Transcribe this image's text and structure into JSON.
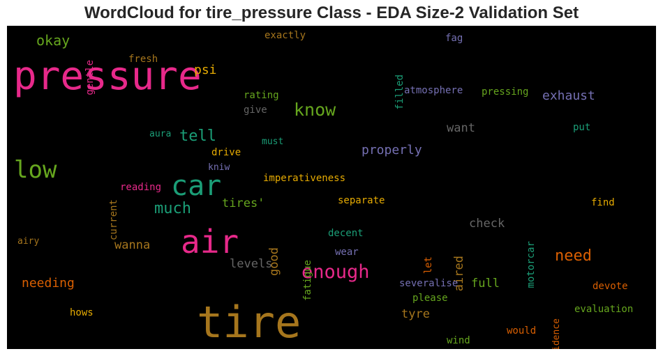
{
  "chart_data": {
    "type": "wordcloud",
    "title": "WordCloud for tire_pressure Class - EDA Size-2 Validation Set",
    "background": "#000000",
    "words": [
      {
        "text": "tire",
        "color": "#a6761d"
      },
      {
        "text": "pressure",
        "color": "#e7298a"
      },
      {
        "text": "air",
        "color": "#e7298a"
      },
      {
        "text": "car",
        "color": "#1b9e77"
      },
      {
        "text": "low",
        "color": "#66a61e"
      },
      {
        "text": "enough",
        "color": "#e7298a"
      },
      {
        "text": "know",
        "color": "#66a61e"
      },
      {
        "text": "need",
        "color": "#d95f02"
      },
      {
        "text": "much",
        "color": "#1b9e77"
      },
      {
        "text": "tell",
        "color": "#1b9e77"
      },
      {
        "text": "psi",
        "color": "#e6ab02"
      },
      {
        "text": "okay",
        "color": "#66a61e"
      },
      {
        "text": "exhaust",
        "color": "#7570b3"
      },
      {
        "text": "properly",
        "color": "#7570b3"
      },
      {
        "text": "needing",
        "color": "#d95f02"
      },
      {
        "text": "check",
        "color": "#666666"
      },
      {
        "text": "want",
        "color": "#666666"
      },
      {
        "text": "levels",
        "color": "#666666"
      },
      {
        "text": "wanna",
        "color": "#a6761d"
      },
      {
        "text": "good",
        "color": "#a6761d"
      },
      {
        "text": "aired",
        "color": "#a6761d"
      },
      {
        "text": "full",
        "color": "#66a61e"
      },
      {
        "text": "tyre",
        "color": "#a6761d"
      },
      {
        "text": "tires'",
        "color": "#66a61e"
      },
      {
        "text": "exactly",
        "color": "#a6761d"
      },
      {
        "text": "fresh",
        "color": "#a6761d"
      },
      {
        "text": "gentle",
        "color": "#e7298a"
      },
      {
        "text": "filled",
        "color": "#1b9e77"
      },
      {
        "text": "fag",
        "color": "#7570b3"
      },
      {
        "text": "rating",
        "color": "#66a61e"
      },
      {
        "text": "give",
        "color": "#666666"
      },
      {
        "text": "atmosphere",
        "color": "#7570b3"
      },
      {
        "text": "pressing",
        "color": "#66a61e"
      },
      {
        "text": "put",
        "color": "#1b9e77"
      },
      {
        "text": "aura",
        "color": "#1b9e77"
      },
      {
        "text": "must",
        "color": "#1b9e77"
      },
      {
        "text": "drive",
        "color": "#e6ab02"
      },
      {
        "text": "kniw",
        "color": "#7570b3"
      },
      {
        "text": "current",
        "color": "#a6761d"
      },
      {
        "text": "imperativeness",
        "color": "#e6ab02"
      },
      {
        "text": "reading",
        "color": "#e7298a"
      },
      {
        "text": "separate",
        "color": "#e6ab02"
      },
      {
        "text": "motorcar",
        "color": "#1b9e77"
      },
      {
        "text": "find",
        "color": "#e6ab02"
      },
      {
        "text": "fatigue",
        "color": "#66a61e"
      },
      {
        "text": "decent",
        "color": "#1b9e77"
      },
      {
        "text": "let",
        "color": "#d95f02"
      },
      {
        "text": "airy",
        "color": "#a6761d"
      },
      {
        "text": "wear",
        "color": "#7570b3"
      },
      {
        "text": "severalise",
        "color": "#7570b3"
      },
      {
        "text": "devote",
        "color": "#d95f02"
      },
      {
        "text": "evidence",
        "color": "#d95f02"
      },
      {
        "text": "please",
        "color": "#66a61e"
      },
      {
        "text": "evaluation",
        "color": "#66a61e"
      },
      {
        "text": "hows",
        "color": "#e6ab02"
      },
      {
        "text": "would",
        "color": "#d95f02"
      },
      {
        "text": "wind",
        "color": "#66a61e"
      }
    ]
  }
}
